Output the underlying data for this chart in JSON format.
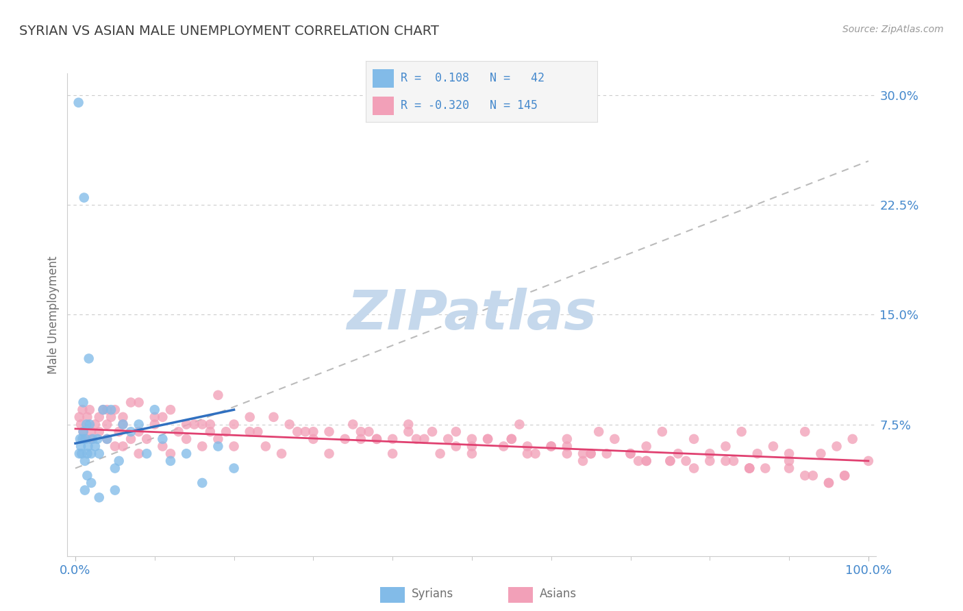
{
  "title": "SYRIAN VS ASIAN MALE UNEMPLOYMENT CORRELATION CHART",
  "source": "Source: ZipAtlas.com",
  "ylabel": "Male Unemployment",
  "xlim": [
    -1.0,
    101.0
  ],
  "ylim": [
    -1.5,
    31.5
  ],
  "ytick_vals": [
    7.5,
    15.0,
    22.5,
    30.0
  ],
  "ytick_labels": [
    "7.5%",
    "15.0%",
    "22.5%",
    "30.0%"
  ],
  "xtick_vals": [
    0.0,
    100.0
  ],
  "xtick_labels": [
    "0.0%",
    "100.0%"
  ],
  "syrian_color": "#82BBE8",
  "asian_color": "#F2A0B8",
  "syrian_line_color": "#3070C0",
  "asian_line_color": "#E04070",
  "dashed_line_color": "#BBBBBB",
  "watermark": "ZIPatlas",
  "watermark_color": "#C5D8EC",
  "background_color": "#FFFFFF",
  "grid_color": "#CCCCCC",
  "title_color": "#404040",
  "axis_label_color": "#707070",
  "tick_label_color": "#4488CC",
  "source_color": "#999999",
  "legend_bg": "#F5F5F5",
  "legend_border": "#DDDDDD",
  "syrians_x": [
    0.4,
    0.5,
    0.6,
    0.7,
    0.8,
    0.9,
    1.0,
    1.1,
    1.2,
    1.3,
    1.4,
    1.5,
    1.6,
    1.7,
    1.8,
    2.0,
    2.2,
    2.5,
    2.8,
    3.0,
    3.5,
    4.0,
    4.5,
    5.0,
    5.5,
    6.0,
    7.0,
    8.0,
    9.0,
    10.0,
    11.0,
    12.0,
    14.0,
    16.0,
    18.0,
    20.0,
    1.0,
    1.2,
    1.5,
    2.0,
    3.0,
    5.0
  ],
  "syrians_y": [
    29.5,
    5.5,
    6.5,
    6.0,
    5.5,
    6.5,
    7.0,
    23.0,
    5.0,
    6.5,
    7.5,
    5.5,
    6.0,
    12.0,
    7.5,
    5.5,
    6.5,
    6.0,
    6.5,
    5.5,
    8.5,
    6.5,
    8.5,
    4.5,
    5.0,
    7.5,
    7.0,
    7.5,
    5.5,
    8.5,
    6.5,
    5.0,
    5.5,
    3.5,
    6.0,
    4.5,
    9.0,
    3.0,
    4.0,
    3.5,
    2.5,
    3.0
  ],
  "asians_x": [
    0.5,
    0.7,
    0.9,
    1.0,
    1.2,
    1.5,
    1.8,
    2.0,
    2.5,
    3.0,
    3.5,
    4.0,
    4.5,
    5.0,
    5.5,
    6.0,
    7.0,
    8.0,
    9.0,
    10.0,
    11.0,
    12.0,
    13.0,
    14.0,
    15.0,
    16.0,
    17.0,
    18.0,
    19.0,
    20.0,
    22.0,
    24.0,
    26.0,
    28.0,
    30.0,
    32.0,
    34.0,
    36.0,
    38.0,
    40.0,
    42.0,
    44.0,
    46.0,
    48.0,
    50.0,
    52.0,
    54.0,
    56.0,
    58.0,
    60.0,
    62.0,
    64.0,
    66.0,
    68.0,
    70.0,
    72.0,
    74.0,
    76.0,
    78.0,
    80.0,
    82.0,
    84.0,
    86.0,
    88.0,
    90.0,
    92.0,
    94.0,
    96.0,
    98.0,
    100.0,
    3.0,
    5.0,
    8.0,
    12.0,
    16.0,
    20.0,
    25.0,
    30.0,
    35.0,
    40.0,
    45.0,
    50.0,
    55.0,
    60.0,
    65.0,
    70.0,
    75.0,
    80.0,
    85.0,
    90.0,
    95.0,
    4.0,
    7.0,
    10.0,
    14.0,
    18.0,
    22.0,
    27.0,
    32.0,
    37.0,
    42.0,
    47.0,
    52.0,
    57.0,
    62.0,
    67.0,
    72.0,
    77.0,
    82.0,
    87.0,
    92.0,
    97.0,
    6.0,
    11.0,
    17.0,
    23.0,
    29.0,
    36.0,
    43.0,
    50.0,
    57.0,
    64.0,
    71.0,
    78.0,
    85.0,
    93.0,
    2.0,
    4.0,
    6.0,
    8.0,
    62.0,
    72.0,
    83.0,
    90.0,
    97.0,
    38.0,
    48.0,
    55.0,
    65.0,
    75.0,
    85.0,
    95.0
  ],
  "asians_y": [
    8.0,
    7.5,
    8.5,
    7.0,
    6.5,
    8.0,
    8.5,
    6.5,
    7.5,
    7.0,
    8.5,
    7.5,
    8.0,
    6.0,
    7.0,
    7.5,
    6.5,
    7.0,
    6.5,
    7.5,
    6.0,
    5.5,
    7.0,
    6.5,
    7.5,
    6.0,
    7.0,
    6.5,
    7.0,
    6.0,
    7.0,
    6.0,
    5.5,
    7.0,
    6.5,
    5.5,
    6.5,
    7.0,
    6.5,
    5.5,
    7.0,
    6.5,
    5.5,
    7.0,
    5.5,
    6.5,
    6.0,
    7.5,
    5.5,
    6.0,
    6.5,
    5.0,
    7.0,
    6.5,
    5.5,
    6.0,
    7.0,
    5.5,
    6.5,
    5.0,
    6.0,
    7.0,
    5.5,
    6.0,
    5.5,
    7.0,
    5.5,
    6.0,
    6.5,
    5.0,
    8.0,
    8.5,
    9.0,
    8.5,
    7.5,
    7.5,
    8.0,
    7.0,
    7.5,
    6.5,
    7.0,
    6.5,
    6.5,
    6.0,
    5.5,
    5.5,
    5.0,
    5.5,
    4.5,
    5.0,
    3.5,
    8.5,
    9.0,
    8.0,
    7.5,
    9.5,
    8.0,
    7.5,
    7.0,
    7.0,
    7.5,
    6.5,
    6.5,
    6.0,
    6.0,
    5.5,
    5.0,
    5.0,
    5.0,
    4.5,
    4.0,
    4.0,
    8.0,
    8.0,
    7.5,
    7.0,
    7.0,
    6.5,
    6.5,
    6.0,
    5.5,
    5.5,
    5.0,
    4.5,
    4.5,
    4.0,
    7.0,
    6.5,
    6.0,
    5.5,
    5.5,
    5.0,
    5.0,
    4.5,
    4.0,
    6.5,
    6.0,
    6.5,
    5.5,
    5.0,
    4.5,
    3.5
  ],
  "syrian_trend_x": [
    0,
    20
  ],
  "syrian_trend_y": [
    6.2,
    8.5
  ],
  "asian_trend_x": [
    0,
    100
  ],
  "asian_trend_y": [
    7.2,
    5.0
  ],
  "dashed_trend_x": [
    0,
    100
  ],
  "dashed_trend_y": [
    4.5,
    25.5
  ]
}
